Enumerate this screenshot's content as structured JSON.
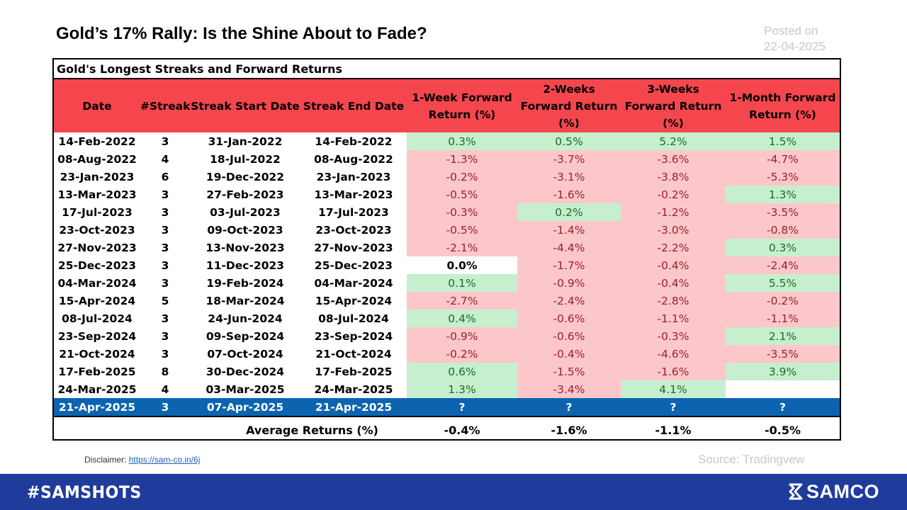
{
  "title": "Gold’s 17% Rally: Is the Shine About to Fade?",
  "posted": {
    "label": "Posted on",
    "date": "22-04-2025"
  },
  "table": {
    "caption": "Gold's Longest Streaks and Forward Returns",
    "headers": [
      "Date",
      "#Streak",
      "Streak Start Date",
      "Streak End Date",
      "1-Week Forward Return (%)",
      "2-Weeks Forward Return (%)",
      "3-Weeks Forward Return (%)",
      "1-Month Forward Return (%)"
    ],
    "rows": [
      [
        "14-Feb-2022",
        "3",
        "31-Jan-2022",
        "14-Feb-2022",
        "0.3%",
        "0.5%",
        "5.2%",
        "1.5%"
      ],
      [
        "08-Aug-2022",
        "4",
        "18-Jul-2022",
        "08-Aug-2022",
        "-1.3%",
        "-3.7%",
        "-3.6%",
        "-4.7%"
      ],
      [
        "23-Jan-2023",
        "6",
        "19-Dec-2022",
        "23-Jan-2023",
        "-0.2%",
        "-3.1%",
        "-3.8%",
        "-5.3%"
      ],
      [
        "13-Mar-2023",
        "3",
        "27-Feb-2023",
        "13-Mar-2023",
        "-0.5%",
        "-1.6%",
        "-0.2%",
        "1.3%"
      ],
      [
        "17-Jul-2023",
        "3",
        "03-Jul-2023",
        "17-Jul-2023",
        "-0.3%",
        "0.2%",
        "-1.2%",
        "-3.5%"
      ],
      [
        "23-Oct-2023",
        "3",
        "09-Oct-2023",
        "23-Oct-2023",
        "-0.5%",
        "-1.4%",
        "-3.0%",
        "-0.8%"
      ],
      [
        "27-Nov-2023",
        "3",
        "13-Nov-2023",
        "27-Nov-2023",
        "-2.1%",
        "-4.4%",
        "-2.2%",
        "0.3%"
      ],
      [
        "25-Dec-2023",
        "3",
        "11-Dec-2023",
        "25-Dec-2023",
        "0.0%",
        "-1.7%",
        "-0.4%",
        "-2.4%"
      ],
      [
        "04-Mar-2024",
        "3",
        "19-Feb-2024",
        "04-Mar-2024",
        "0.1%",
        "-0.9%",
        "-0.4%",
        "5.5%"
      ],
      [
        "15-Apr-2024",
        "5",
        "18-Mar-2024",
        "15-Apr-2024",
        "-2.7%",
        "-2.4%",
        "-2.8%",
        "-0.2%"
      ],
      [
        "08-Jul-2024",
        "3",
        "24-Jun-2024",
        "08-Jul-2024",
        "0.4%",
        "-0.6%",
        "-1.1%",
        "-1.1%"
      ],
      [
        "23-Sep-2024",
        "3",
        "09-Sep-2024",
        "23-Sep-2024",
        "-0.9%",
        "-0.6%",
        "-0.3%",
        "2.1%"
      ],
      [
        "21-Oct-2024",
        "3",
        "07-Oct-2024",
        "21-Oct-2024",
        "-0.2%",
        "-0.4%",
        "-4.6%",
        "-3.5%"
      ],
      [
        "17-Feb-2025",
        "8",
        "30-Dec-2024",
        "17-Feb-2025",
        "0.6%",
        "-1.5%",
        "-1.6%",
        "3.9%"
      ],
      [
        "24-Mar-2025",
        "4",
        "03-Mar-2025",
        "24-Mar-2025",
        "1.3%",
        "-3.4%",
        "4.1%",
        ""
      ]
    ],
    "current_row": [
      "21-Apr-2025",
      "3",
      "07-Apr-2025",
      "21-Apr-2025",
      "?",
      "?",
      "?",
      "?"
    ],
    "average": {
      "label": "Average Returns (%)",
      "values": [
        "-0.4%",
        "-1.6%",
        "-1.1%",
        "-0.5%"
      ]
    },
    "colors": {
      "header": "#f6464d",
      "positive": "#c6efce",
      "negative": "#fcc7cb",
      "current": "#0c64b0"
    }
  },
  "disclaimer": {
    "label": "Disclaimer:",
    "link": "https://sam-co.in/6j"
  },
  "source": "Source: Tradingvew",
  "footer": {
    "hashtag": "#SAMSHOTS",
    "brand": "SAMCO",
    "color": "#1f3b9c"
  }
}
